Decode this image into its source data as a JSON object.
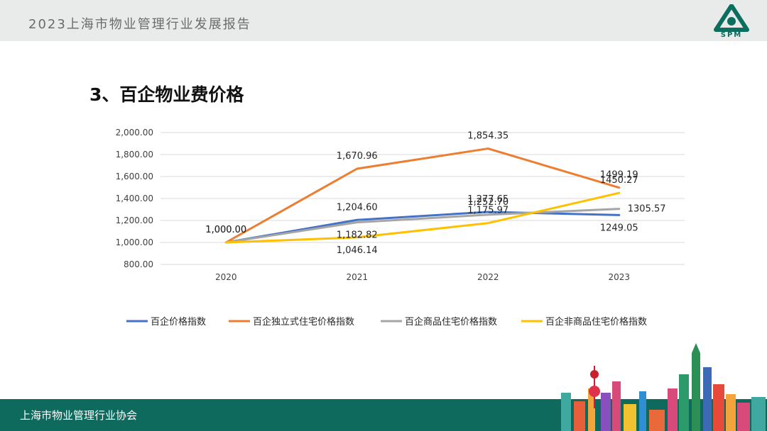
{
  "header": {
    "title": "2023上海市物业管理行业发展报告"
  },
  "logo": {
    "text": "SPM"
  },
  "slide": {
    "title": "3、百企物业费价格"
  },
  "footer": {
    "org": "上海市物业管理行业协会"
  },
  "chart_data": {
    "type": "line",
    "title": "",
    "xlabel": "",
    "ylabel": "",
    "categories": [
      "2020",
      "2021",
      "2022",
      "2023"
    ],
    "ylim": [
      800,
      2000
    ],
    "yticks": [
      800,
      1000,
      1200,
      1400,
      1600,
      1800,
      2000
    ],
    "ytick_labels": [
      "800.00",
      "1,000.00",
      "1,200.00",
      "1,400.00",
      "1,600.00",
      "1,800.00",
      "2,000.00"
    ],
    "grid": true,
    "legend": "bottom",
    "series": [
      {
        "name": "百企价格指数",
        "color": "#4472c4",
        "values": [
          1000,
          1204.6,
          1277.65,
          1249.05
        ]
      },
      {
        "name": "百企独立式住宅价格指数",
        "color": "#ed7d31",
        "values": [
          1000,
          1670.96,
          1854.35,
          1499.19
        ]
      },
      {
        "name": "百企商品住宅价格指数",
        "color": "#a5a5a5",
        "values": [
          1000,
          1182.82,
          1252.7,
          1305.57
        ]
      },
      {
        "name": "百企非商品住宅价格指数",
        "color": "#ffc000",
        "values": [
          1000,
          1046.14,
          1175.97,
          1450.27
        ]
      }
    ],
    "data_labels": [
      {
        "text": "1,000.00",
        "series": 1,
        "point": 0,
        "pos": "above"
      },
      {
        "text": "1,000.00",
        "series": 0,
        "point": 0,
        "pos": "above"
      },
      {
        "text": "1,670.96",
        "series": 1,
        "point": 1,
        "pos": "above"
      },
      {
        "text": "1,854.35",
        "series": 1,
        "point": 2,
        "pos": "above"
      },
      {
        "text": "1499.19",
        "series": 1,
        "point": 3,
        "pos": "above"
      },
      {
        "text": "1,204.60",
        "series": 0,
        "point": 1,
        "pos": "above"
      },
      {
        "text": "1,277.65",
        "series": 0,
        "point": 2,
        "pos": "above"
      },
      {
        "text": "1249.05",
        "series": 0,
        "point": 3,
        "pos": "below"
      },
      {
        "text": "1,182.82",
        "series": 2,
        "point": 1,
        "pos": "below"
      },
      {
        "text": "1,252.70",
        "series": 2,
        "point": 2,
        "pos": "above"
      },
      {
        "text": "1305.57",
        "series": 2,
        "point": 3,
        "pos": "right"
      },
      {
        "text": "1,046.14",
        "series": 3,
        "point": 1,
        "pos": "below"
      },
      {
        "text": "1,175.97",
        "series": 3,
        "point": 2,
        "pos": "above"
      },
      {
        "text": "1450.27",
        "series": 3,
        "point": 3,
        "pos": "above"
      }
    ]
  }
}
